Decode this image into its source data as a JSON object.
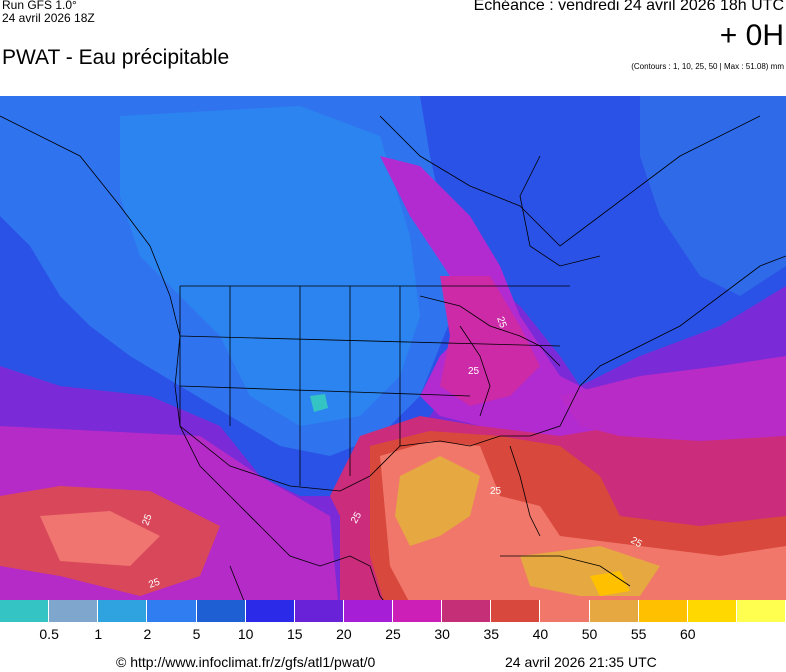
{
  "header": {
    "run_label": "Run GFS 1.0°",
    "run_date": "24 avril 2026 18Z",
    "title": "PWAT - Eau précipitable",
    "valid_time": "Echéance : vendredi 24 avril 2026 18h UTC",
    "lead_time": "+ 0H",
    "contours_note": "(Contours : 1, 10, 25, 50 | Max : 51.08) mm"
  },
  "map": {
    "contour_label": "25"
  },
  "legend": {
    "colors": [
      "#35c4c4",
      "#7fa6cd",
      "#2fa3e0",
      "#2f7df0",
      "#1f5fd4",
      "#2a2ae8",
      "#6a22d8",
      "#a61fd6",
      "#cc1fb8",
      "#c42f78",
      "#d8483c",
      "#f0776a",
      "#e6a840",
      "#ffc000",
      "#ffd800",
      "#ffff50"
    ],
    "labels": [
      "0.5",
      "1",
      "2",
      "5",
      "10",
      "15",
      "20",
      "25",
      "30",
      "35",
      "40",
      "50",
      "55",
      "60"
    ]
  },
  "footer": {
    "copyright": "© http://www.infoclimat.fr/z/gfs/atl1/pwat/0",
    "generated": "24 avril 2026 21:35 UTC"
  }
}
